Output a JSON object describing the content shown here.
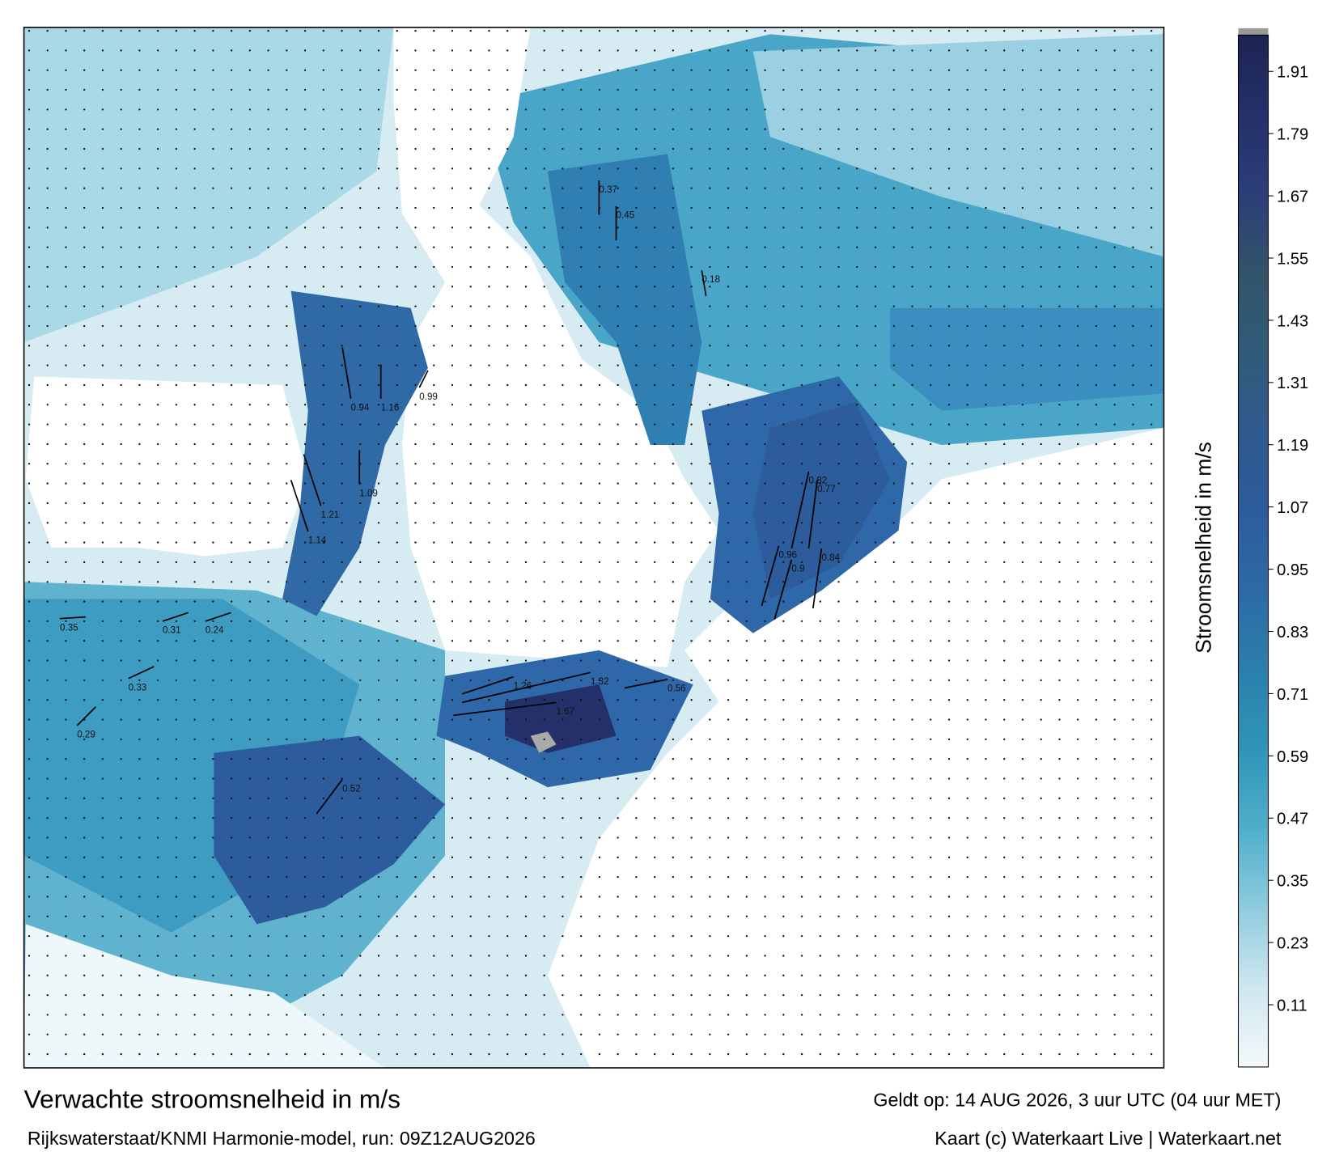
{
  "map": {
    "title": "Verwachte stroomsnelheid in m/s",
    "valid_time": "Geldt op: 14 AUG 2026, 3 uur UTC (04 uur MET)",
    "model_run": "Rijkswaterstaat/KNMI Harmonie-model, run: 09Z12AUG2026",
    "credit": "Kaart (c) Waterkaart Live | Waterkaart.net",
    "colorbar": {
      "label": "Stroomsnelheid in m/s",
      "clim": [
        -0.01,
        1.98
      ],
      "ticks": [
        0.11,
        0.23,
        0.35,
        0.47,
        0.59,
        0.71,
        0.83,
        0.95,
        1.07,
        1.19,
        1.31,
        1.43,
        1.55,
        1.67,
        1.79,
        1.91
      ],
      "colormap": [
        "#f4f9fb",
        "#cfe7ef",
        "#8fcbde",
        "#4fafca",
        "#2f95b8",
        "#2b7fac",
        "#2c6aa6",
        "#2d5c9c",
        "#2f5a8e",
        "#2f5b78",
        "#325469",
        "#2b3e78",
        "#24306a",
        "#1c2452"
      ]
    },
    "annotations": [
      {
        "label": "0.35",
        "value": 0.35
      },
      {
        "label": "0.33",
        "value": 0.33
      },
      {
        "label": "0.29",
        "value": 0.29
      },
      {
        "label": "1.09",
        "value": 1.09
      },
      {
        "label": "1.21",
        "value": 1.21
      },
      {
        "label": "1.14",
        "value": 1.14
      },
      {
        "label": "0.94",
        "value": 0.94
      },
      {
        "label": "1.16",
        "value": 1.16
      },
      {
        "label": "0.99",
        "value": 0.99
      },
      {
        "label": "1.26",
        "value": 1.26
      },
      {
        "label": "1.32",
        "value": 1.32
      },
      {
        "label": "1.67",
        "value": 1.67
      },
      {
        "label": "0.56",
        "value": 0.56
      },
      {
        "label": "0.82",
        "value": 0.82
      },
      {
        "label": "0.77",
        "value": 0.77
      },
      {
        "label": "0.84",
        "value": 0.84
      },
      {
        "label": "0.96",
        "value": 0.96
      },
      {
        "label": "0.9",
        "value": 0.9
      },
      {
        "label": "0.37",
        "value": 0.37
      },
      {
        "label": "0.45",
        "value": 0.45
      },
      {
        "label": "0.52",
        "value": 0.52
      },
      {
        "label": "0.31",
        "value": 0.31
      },
      {
        "label": "0.24",
        "value": 0.24
      },
      {
        "label": "0.18",
        "value": 0.18
      }
    ]
  }
}
